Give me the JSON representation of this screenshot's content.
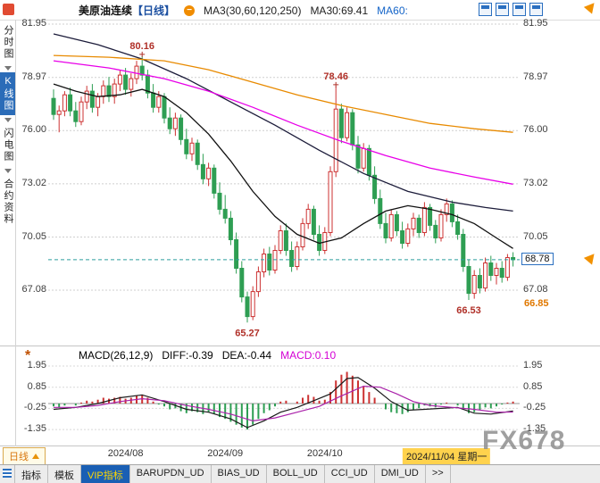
{
  "header": {
    "title_name": "美原油连续",
    "title_period": "【日线】",
    "ma_group_label": "MA3(30,60,120,250)",
    "ma30_label": "MA30:69.41",
    "ma60_label": "MA60:"
  },
  "sidebar": {
    "items": [
      {
        "label": "分时图",
        "active": false
      },
      {
        "label": "K线图",
        "active": true
      },
      {
        "label": "闪电图",
        "active": false
      },
      {
        "label": "合约资料",
        "active": false
      }
    ]
  },
  "right_panel": {
    "current_price": "68.78",
    "secondary_price": "66.85"
  },
  "axis_bottom": {
    "period_button": "日线"
  },
  "macd_header": {
    "title": "MACD(26,12,9)",
    "diff": "DIFF:-0.39",
    "dea": "DEA:-0.44",
    "macd": "MACD:0.10"
  },
  "watermark": "FX678",
  "toolbar": {
    "tabs": [
      {
        "label": "指标",
        "active": false
      },
      {
        "label": "模板",
        "active": false
      },
      {
        "label": "VIP指标",
        "active": true
      },
      {
        "label": "BARUPDN_UD",
        "active": false
      },
      {
        "label": "BIAS_UD",
        "active": false
      },
      {
        "label": "BOLL_UD",
        "active": false
      },
      {
        "label": "CCI_UD",
        "active": false
      },
      {
        "label": "DMI_UD",
        "active": false
      },
      {
        "label": ">>",
        "active": false
      }
    ]
  },
  "chart_data": {
    "type": "candlestick+macd",
    "title": "美原油连续【日线】",
    "colors": {
      "up": "#cc3232",
      "down": "#2e9e53",
      "annotation": "#b03028",
      "price_line": "#2f9e9e",
      "diff": "#1a1a1a",
      "dea": "#aa22aa"
    },
    "x_labels": [
      {
        "text": "2024/08",
        "index": 13,
        "highlight": false
      },
      {
        "text": "2024/09",
        "index": 31,
        "highlight": false
      },
      {
        "text": "2024/10",
        "index": 49,
        "highlight": false
      },
      {
        "text": "2024/11/04 星期一",
        "index": 71,
        "highlight": true
      }
    ],
    "main": {
      "ylim": [
        65.0,
        82.3
      ],
      "y_ticks": [
        "81.95",
        "78.97",
        "76.00",
        "73.02",
        "70.05",
        "67.08"
      ],
      "current_price": 68.78,
      "annotations": [
        {
          "text": "80.16",
          "index": 16,
          "price": 80.16,
          "placement": "above"
        },
        {
          "text": "78.46",
          "index": 51,
          "price": 78.46,
          "placement": "above"
        },
        {
          "text": "65.27",
          "index": 35,
          "price": 65.27,
          "placement": "below"
        },
        {
          "text": "66.53",
          "index": 75,
          "price": 66.53,
          "placement": "below"
        }
      ],
      "candles": [
        [
          77.8,
          78.3,
          76.6,
          76.9
        ],
        [
          76.9,
          77.4,
          75.9,
          77.1
        ],
        [
          77.1,
          78.2,
          76.8,
          78.0
        ],
        [
          78.0,
          78.4,
          76.8,
          77.1
        ],
        [
          77.1,
          77.6,
          76.2,
          76.5
        ],
        [
          76.5,
          77.9,
          76.3,
          77.6
        ],
        [
          77.6,
          78.5,
          77.2,
          78.2
        ],
        [
          78.2,
          78.6,
          77.0,
          77.3
        ],
        [
          77.3,
          78.1,
          76.8,
          77.9
        ],
        [
          77.9,
          78.8,
          77.5,
          78.5
        ],
        [
          78.5,
          79.0,
          77.6,
          77.9
        ],
        [
          77.9,
          78.9,
          77.5,
          78.6
        ],
        [
          78.6,
          79.4,
          78.2,
          79.1
        ],
        [
          79.1,
          79.5,
          78.0,
          78.3
        ],
        [
          78.3,
          79.2,
          77.9,
          78.9
        ],
        [
          78.9,
          79.9,
          78.6,
          79.6
        ],
        [
          79.6,
          80.16,
          78.8,
          79.1
        ],
        [
          79.1,
          79.4,
          77.8,
          78.1
        ],
        [
          78.1,
          78.6,
          77.0,
          77.3
        ],
        [
          77.3,
          78.2,
          77.0,
          77.9
        ],
        [
          77.9,
          78.1,
          76.4,
          76.7
        ],
        [
          76.7,
          77.3,
          75.8,
          76.1
        ],
        [
          76.1,
          77.0,
          75.7,
          76.7
        ],
        [
          76.7,
          76.9,
          75.2,
          75.5
        ],
        [
          75.5,
          76.1,
          74.4,
          74.7
        ],
        [
          74.7,
          75.6,
          74.3,
          75.3
        ],
        [
          75.3,
          75.5,
          73.8,
          74.1
        ],
        [
          74.1,
          74.7,
          73.0,
          73.3
        ],
        [
          73.3,
          74.2,
          72.9,
          73.9
        ],
        [
          73.9,
          74.1,
          72.2,
          72.5
        ],
        [
          72.5,
          73.1,
          71.3,
          71.6
        ],
        [
          71.6,
          72.4,
          70.8,
          71.1
        ],
        [
          71.1,
          71.5,
          69.6,
          69.9
        ],
        [
          69.9,
          70.3,
          68.0,
          68.3
        ],
        [
          68.3,
          68.7,
          66.4,
          66.7
        ],
        [
          66.7,
          67.0,
          65.27,
          65.6
        ],
        [
          65.6,
          67.3,
          65.4,
          67.0
        ],
        [
          67.0,
          68.4,
          66.7,
          68.1
        ],
        [
          68.1,
          69.4,
          67.8,
          69.1
        ],
        [
          69.1,
          69.5,
          67.9,
          68.2
        ],
        [
          68.2,
          69.6,
          68.0,
          69.3
        ],
        [
          69.3,
          70.7,
          69.1,
          70.4
        ],
        [
          70.4,
          70.8,
          69.0,
          69.3
        ],
        [
          69.3,
          69.8,
          68.1,
          68.4
        ],
        [
          68.4,
          69.8,
          68.2,
          69.5
        ],
        [
          69.5,
          71.1,
          69.3,
          70.8
        ],
        [
          70.8,
          71.9,
          70.5,
          71.6
        ],
        [
          71.6,
          71.8,
          69.9,
          70.2
        ],
        [
          70.2,
          70.7,
          69.0,
          69.3
        ],
        [
          69.3,
          70.6,
          69.1,
          70.3
        ],
        [
          70.3,
          74.0,
          70.1,
          73.7
        ],
        [
          73.7,
          78.46,
          73.4,
          77.2
        ],
        [
          77.2,
          77.5,
          75.3,
          75.6
        ],
        [
          75.6,
          77.3,
          75.4,
          77.0
        ],
        [
          77.0,
          77.2,
          74.9,
          75.2
        ],
        [
          75.2,
          75.7,
          73.6,
          73.9
        ],
        [
          73.9,
          75.3,
          73.7,
          75.0
        ],
        [
          75.0,
          75.2,
          73.2,
          73.5
        ],
        [
          73.5,
          74.0,
          71.9,
          72.2
        ],
        [
          72.2,
          72.7,
          70.5,
          70.8
        ],
        [
          70.8,
          71.4,
          69.7,
          70.0
        ],
        [
          70.0,
          71.6,
          69.8,
          71.3
        ],
        [
          71.3,
          71.5,
          70.1,
          70.4
        ],
        [
          70.4,
          70.9,
          69.4,
          69.7
        ],
        [
          69.7,
          70.8,
          69.5,
          70.5
        ],
        [
          70.5,
          71.4,
          70.1,
          71.1
        ],
        [
          71.1,
          71.3,
          70.0,
          70.3
        ],
        [
          70.3,
          72.0,
          70.1,
          71.7
        ],
        [
          71.7,
          71.9,
          70.4,
          70.7
        ],
        [
          70.7,
          71.0,
          69.7,
          70.0
        ],
        [
          70.0,
          71.6,
          69.8,
          71.3
        ],
        [
          71.3,
          72.2,
          70.9,
          71.9
        ],
        [
          71.9,
          72.1,
          70.6,
          70.9
        ],
        [
          70.9,
          71.3,
          69.9,
          70.2
        ],
        [
          70.2,
          70.5,
          68.1,
          68.4
        ],
        [
          68.4,
          68.8,
          66.53,
          66.9
        ],
        [
          66.9,
          68.2,
          66.6,
          67.9
        ],
        [
          67.9,
          68.3,
          66.9,
          67.2
        ],
        [
          67.2,
          68.9,
          67.0,
          68.6
        ],
        [
          68.6,
          69.0,
          67.6,
          67.9
        ],
        [
          67.9,
          68.6,
          67.4,
          68.3
        ],
        [
          68.3,
          68.7,
          67.5,
          67.8
        ],
        [
          67.8,
          69.1,
          67.6,
          68.9
        ],
        [
          68.9,
          69.2,
          68.4,
          68.78
        ]
      ],
      "ma_lines": [
        {
          "name": "MA30",
          "color": "#111111",
          "points": [
            [
              0,
              78.6
            ],
            [
              4,
              78.2
            ],
            [
              8,
              77.9
            ],
            [
              12,
              78.0
            ],
            [
              16,
              78.3
            ],
            [
              20,
              77.9
            ],
            [
              24,
              77.0
            ],
            [
              28,
              75.8
            ],
            [
              32,
              74.3
            ],
            [
              36,
              72.6
            ],
            [
              40,
              71.2
            ],
            [
              44,
              70.2
            ],
            [
              48,
              69.7
            ],
            [
              52,
              70.0
            ],
            [
              56,
              70.8
            ],
            [
              60,
              71.5
            ],
            [
              64,
              71.8
            ],
            [
              68,
              71.6
            ],
            [
              72,
              71.3
            ],
            [
              76,
              70.8
            ],
            [
              80,
              70.0
            ],
            [
              83,
              69.41
            ]
          ]
        },
        {
          "name": "MA60",
          "color": "#1c1c3a",
          "points": [
            [
              0,
              81.4
            ],
            [
              8,
              80.8
            ],
            [
              16,
              80.0
            ],
            [
              24,
              78.9
            ],
            [
              32,
              77.6
            ],
            [
              40,
              76.3
            ],
            [
              48,
              74.9
            ],
            [
              56,
              73.6
            ],
            [
              64,
              72.6
            ],
            [
              72,
              72.0
            ],
            [
              78,
              71.7
            ],
            [
              83,
              71.5
            ]
          ]
        },
        {
          "name": "MA120",
          "color": "#e800e8",
          "points": [
            [
              0,
              79.9
            ],
            [
              10,
              79.5
            ],
            [
              20,
              78.9
            ],
            [
              28,
              78.2
            ],
            [
              36,
              77.3
            ],
            [
              44,
              76.3
            ],
            [
              52,
              75.4
            ],
            [
              60,
              74.6
            ],
            [
              68,
              73.9
            ],
            [
              76,
              73.4
            ],
            [
              83,
              73.0
            ]
          ]
        },
        {
          "name": "MA250",
          "color": "#e88a00",
          "points": [
            [
              0,
              80.2
            ],
            [
              10,
              80.1
            ],
            [
              20,
              79.9
            ],
            [
              28,
              79.4
            ],
            [
              36,
              78.7
            ],
            [
              44,
              78.0
            ],
            [
              52,
              77.4
            ],
            [
              60,
              76.9
            ],
            [
              68,
              76.4
            ],
            [
              76,
              76.1
            ],
            [
              83,
              75.9
            ]
          ]
        }
      ]
    },
    "macd": {
      "ylim": [
        -2.0,
        2.4
      ],
      "y_ticks": [
        "1.95",
        "0.85",
        "-0.25",
        "-1.35"
      ],
      "histogram": [
        -0.15,
        -0.2,
        -0.1,
        0,
        -0.1,
        0.05,
        0.15,
        0.1,
        0.2,
        0.3,
        0.25,
        0.3,
        0.35,
        0.25,
        0.3,
        0.4,
        0.45,
        0.3,
        0.1,
        -0.05,
        -0.15,
        -0.3,
        -0.25,
        -0.4,
        -0.5,
        -0.4,
        -0.45,
        -0.55,
        -0.45,
        -0.55,
        -0.7,
        -0.8,
        -0.95,
        -1.1,
        -1.25,
        -1.35,
        -1.1,
        -0.8,
        -0.5,
        -0.35,
        -0.15,
        0.1,
        0.15,
        0,
        0.1,
        0.3,
        0.45,
        0.35,
        0.15,
        0.2,
        0.6,
        1.2,
        1.5,
        1.65,
        1.45,
        1.2,
        0.9,
        0.6,
        0.3,
        0,
        -0.3,
        -0.45,
        -0.5,
        -0.55,
        -0.45,
        -0.3,
        -0.25,
        -0.1,
        -0.15,
        -0.2,
        -0.05,
        0.05,
        0,
        -0.1,
        -0.3,
        -0.5,
        -0.45,
        -0.35,
        -0.2,
        -0.25,
        -0.15,
        -0.05,
        0.05,
        0.1
      ],
      "diff_points": [
        [
          0,
          -0.3
        ],
        [
          4,
          -0.2
        ],
        [
          8,
          0.0
        ],
        [
          12,
          0.3
        ],
        [
          16,
          0.45
        ],
        [
          20,
          0.1
        ],
        [
          24,
          -0.3
        ],
        [
          28,
          -0.45
        ],
        [
          32,
          -0.8
        ],
        [
          35,
          -1.25
        ],
        [
          38,
          -0.9
        ],
        [
          41,
          -0.45
        ],
        [
          44,
          -0.2
        ],
        [
          47,
          0.15
        ],
        [
          50,
          0.5
        ],
        [
          53,
          1.3
        ],
        [
          55,
          1.35
        ],
        [
          58,
          0.8
        ],
        [
          61,
          0.1
        ],
        [
          64,
          -0.35
        ],
        [
          67,
          -0.3
        ],
        [
          70,
          -0.25
        ],
        [
          73,
          -0.2
        ],
        [
          76,
          -0.5
        ],
        [
          79,
          -0.55
        ],
        [
          83,
          -0.39
        ]
      ],
      "dea_points": [
        [
          0,
          -0.2
        ],
        [
          4,
          -0.2
        ],
        [
          8,
          -0.1
        ],
        [
          12,
          0.1
        ],
        [
          16,
          0.25
        ],
        [
          20,
          0.15
        ],
        [
          24,
          -0.1
        ],
        [
          28,
          -0.3
        ],
        [
          32,
          -0.55
        ],
        [
          36,
          -0.9
        ],
        [
          40,
          -0.75
        ],
        [
          44,
          -0.45
        ],
        [
          48,
          -0.15
        ],
        [
          52,
          0.4
        ],
        [
          56,
          0.9
        ],
        [
          59,
          0.85
        ],
        [
          62,
          0.5
        ],
        [
          65,
          0.1
        ],
        [
          68,
          -0.1
        ],
        [
          72,
          -0.2
        ],
        [
          76,
          -0.3
        ],
        [
          80,
          -0.45
        ],
        [
          83,
          -0.44
        ]
      ]
    }
  }
}
